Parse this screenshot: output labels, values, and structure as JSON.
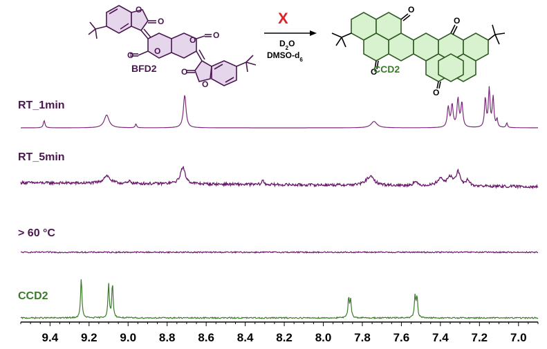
{
  "reaction": {
    "reactant": "BFD2",
    "product": "CCD2",
    "blocked_mark": "X",
    "reagent": "D",
    "reagent_sub": "2",
    "reagent_end": "O",
    "solvent": "DMSO-d",
    "solvent_sub": "6"
  },
  "colors": {
    "purple": "#6b1a6b",
    "label_purple": "#4a1650",
    "green": "#3a7a2a",
    "green_fill": "#d8f2cf",
    "purple_fill": "#e6d6ec",
    "red": "#e0202a",
    "axis": "#000000"
  },
  "chart_data": {
    "type": "line",
    "xlabel": "",
    "ylabel": "",
    "x_axis": {
      "reversed": true,
      "xlim": [
        9.55,
        6.9
      ],
      "ticks": [
        9.4,
        9.2,
        9.0,
        8.8,
        8.6,
        8.4,
        8.2,
        8.0,
        7.8,
        7.6,
        7.4,
        7.2,
        7.0
      ],
      "tick_labels": [
        "9.4",
        "9.2",
        "9.0",
        "8.8",
        "8.6",
        "8.4",
        "8.2",
        "8.0",
        "7.8",
        "7.6",
        "7.4",
        "7.2",
        "7.0"
      ]
    },
    "series": [
      {
        "name": "RT_1min",
        "noise": 0.0,
        "baseline_tilt": 0.0,
        "peaks": [
          {
            "ppm": 9.43,
            "height": 0.18,
            "width": 0.005
          },
          {
            "ppm": 9.11,
            "height": 0.32,
            "width": 0.015
          },
          {
            "ppm": 8.96,
            "height": 0.1,
            "width": 0.004
          },
          {
            "ppm": 8.71,
            "height": 0.82,
            "width": 0.008
          },
          {
            "ppm": 7.74,
            "height": 0.16,
            "width": 0.018
          },
          {
            "ppm": 7.36,
            "height": 0.5,
            "width": 0.006
          },
          {
            "ppm": 7.34,
            "height": 0.55,
            "width": 0.006
          },
          {
            "ppm": 7.31,
            "height": 0.7,
            "width": 0.006
          },
          {
            "ppm": 7.29,
            "height": 0.6,
            "width": 0.006
          },
          {
            "ppm": 7.17,
            "height": 0.72,
            "width": 0.005
          },
          {
            "ppm": 7.15,
            "height": 0.95,
            "width": 0.005
          },
          {
            "ppm": 7.13,
            "height": 0.75,
            "width": 0.005
          },
          {
            "ppm": 7.11,
            "height": 0.2,
            "width": 0.004
          },
          {
            "ppm": 7.06,
            "height": 0.12,
            "width": 0.004
          }
        ]
      },
      {
        "name": "RT_5min",
        "noise": 0.05,
        "baseline_tilt": 0.18,
        "peaks": [
          {
            "ppm": 9.11,
            "height": 0.28,
            "width": 0.02
          },
          {
            "ppm": 8.99,
            "height": 0.1,
            "width": 0.006
          },
          {
            "ppm": 8.72,
            "height": 0.6,
            "width": 0.015
          },
          {
            "ppm": 8.31,
            "height": 0.16,
            "width": 0.006
          },
          {
            "ppm": 7.76,
            "height": 0.32,
            "width": 0.025
          },
          {
            "ppm": 7.53,
            "height": 0.14,
            "width": 0.012
          },
          {
            "ppm": 7.4,
            "height": 0.25,
            "width": 0.02
          },
          {
            "ppm": 7.35,
            "height": 0.3,
            "width": 0.015
          },
          {
            "ppm": 7.31,
            "height": 0.5,
            "width": 0.012
          },
          {
            "ppm": 7.26,
            "height": 0.22,
            "width": 0.01
          }
        ]
      },
      {
        "name": "> 60 °C",
        "noise": 0.09,
        "baseline_tilt": 0.0,
        "peaks": []
      },
      {
        "name": "CCD2",
        "noise": 0.015,
        "baseline_tilt": 0.0,
        "peaks": [
          {
            "ppm": 9.24,
            "height": 0.95,
            "width": 0.004
          },
          {
            "ppm": 9.1,
            "height": 0.78,
            "width": 0.004
          },
          {
            "ppm": 9.08,
            "height": 0.8,
            "width": 0.004
          },
          {
            "ppm": 7.87,
            "height": 0.45,
            "width": 0.004
          },
          {
            "ppm": 7.86,
            "height": 0.42,
            "width": 0.004
          },
          {
            "ppm": 7.53,
            "height": 0.5,
            "width": 0.004
          },
          {
            "ppm": 7.52,
            "height": 0.48,
            "width": 0.004
          }
        ]
      }
    ]
  }
}
